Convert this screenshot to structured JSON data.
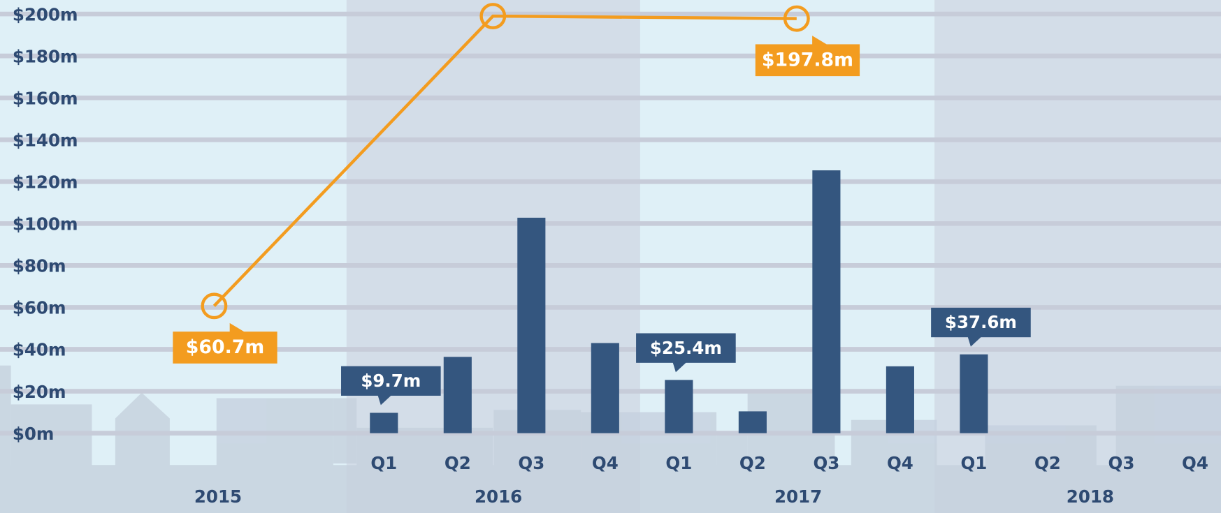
{
  "chart_data": {
    "type": "bar",
    "years": [
      "2015",
      "2016",
      "2017",
      "2018"
    ],
    "categories": [
      "Q1",
      "Q2",
      "Q3",
      "Q4",
      "Q1",
      "Q2",
      "Q3",
      "Q4",
      "Q1",
      "Q2",
      "Q3",
      "Q4"
    ],
    "bars": {
      "color": "#34567f",
      "values": [
        9.7,
        36.4,
        102.8,
        43.0,
        25.4,
        10.4,
        125.4,
        31.9,
        37.6,
        null,
        null,
        null
      ],
      "value_labels": [
        "$9.7m",
        null,
        null,
        null,
        "$25.4m",
        null,
        null,
        null,
        "$37.6m",
        null,
        null,
        null
      ]
    },
    "line": {
      "color": "#f39c1f",
      "values": [
        60.7,
        199,
        197.8,
        null
      ],
      "value_labels": [
        "$60.7m",
        null,
        "$197.8m",
        null
      ]
    },
    "ylim": [
      0,
      200
    ],
    "yticks": [
      {
        "value": 0,
        "label": "$0m"
      },
      {
        "value": 20,
        "label": "$20m"
      },
      {
        "value": 40,
        "label": "$40m"
      },
      {
        "value": 60,
        "label": "$60m"
      },
      {
        "value": 80,
        "label": "$80m"
      },
      {
        "value": 100,
        "label": "$100m"
      },
      {
        "value": 120,
        "label": "$120m"
      },
      {
        "value": 140,
        "label": "$140m"
      },
      {
        "value": 160,
        "label": "$160m"
      },
      {
        "value": 180,
        "label": "$180m"
      },
      {
        "value": 200,
        "label": "$200m"
      }
    ],
    "grid": true
  }
}
